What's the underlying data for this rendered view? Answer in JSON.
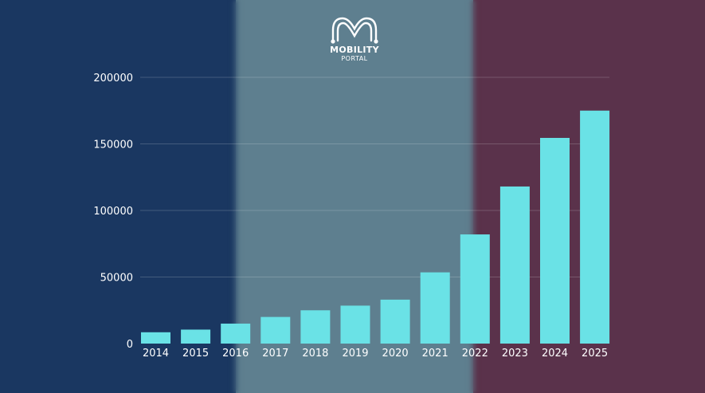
{
  "colors": {
    "band_left": "#1a3761",
    "band_middle": "#5e7f8f",
    "band_right": "#5a324b",
    "bar": "#6ae2e6",
    "gridline": "#ffffff",
    "text": "#ffffff"
  },
  "logo": {
    "name": "MOBILITY",
    "sub": "PORTAL",
    "icon": "mobility-m-icon"
  },
  "chart_data": {
    "type": "bar",
    "title": "",
    "xlabel": "",
    "ylabel": "",
    "categories": [
      "2014",
      "2015",
      "2016",
      "2017",
      "2018",
      "2019",
      "2020",
      "2021",
      "2022",
      "2023",
      "2024",
      "2025"
    ],
    "values": [
      8500,
      10500,
      15000,
      20000,
      25000,
      28500,
      33000,
      53500,
      82000,
      118000,
      154500,
      175000
    ],
    "ylim": [
      0,
      200000
    ],
    "yticks": [
      "0",
      "50000",
      "100000",
      "150000",
      "200000"
    ],
    "grid": true,
    "legend": "none"
  }
}
